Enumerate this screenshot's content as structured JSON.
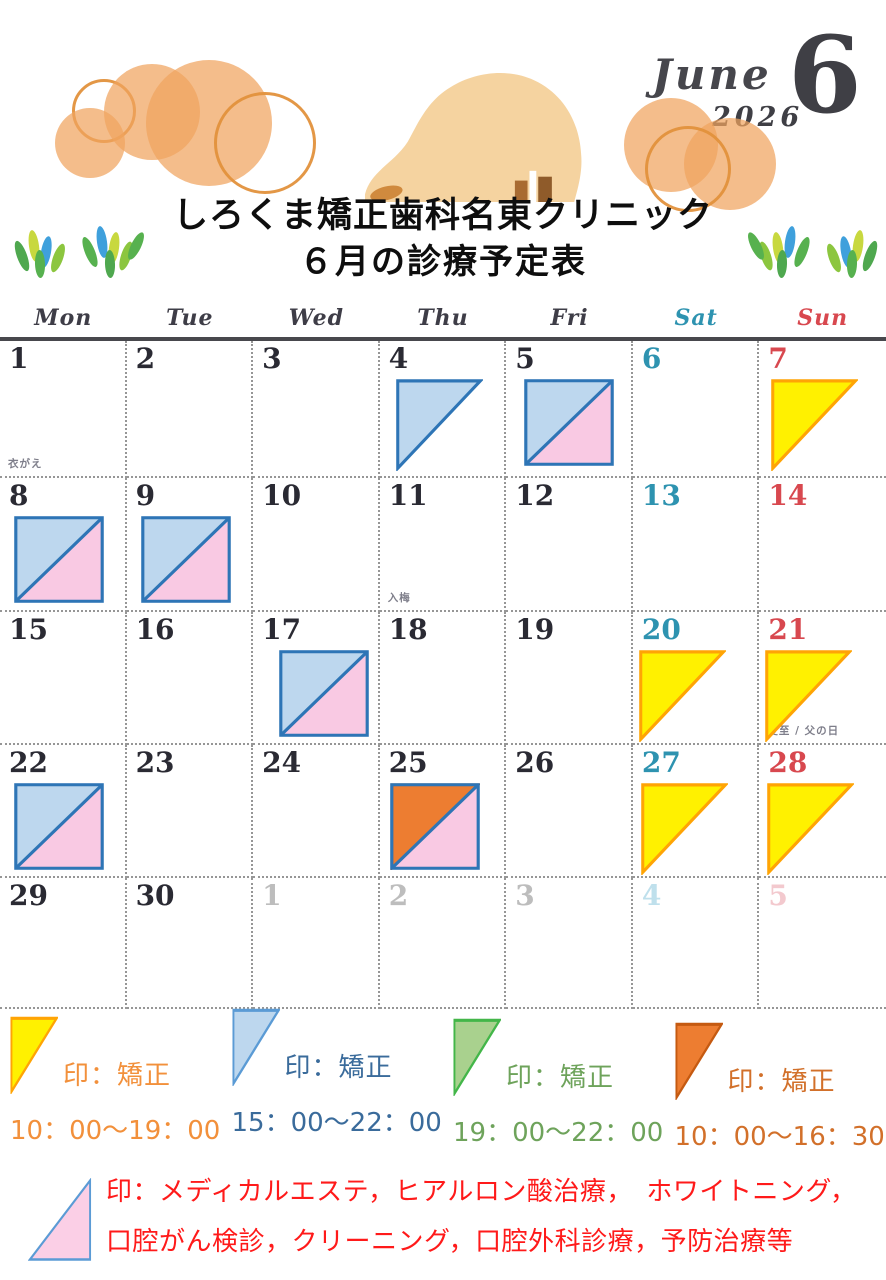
{
  "header": {
    "month_name": "June",
    "year": "2026",
    "month_number": "6"
  },
  "title": {
    "line1": "しろくま矯正歯科名東クリニック",
    "line2": "６月の診療予定表"
  },
  "weekdays": [
    "Mon",
    "Tue",
    "Wed",
    "Thu",
    "Fri",
    "Sat",
    "Sun"
  ],
  "calendar": {
    "cells": [
      {
        "day": "1",
        "cls": "wd",
        "note": "衣がえ"
      },
      {
        "day": "2",
        "cls": "wd"
      },
      {
        "day": "3",
        "cls": "wd"
      },
      {
        "day": "4",
        "cls": "wd",
        "marker": "tri-blue"
      },
      {
        "day": "5",
        "cls": "wd",
        "marker": "split-blue"
      },
      {
        "day": "6",
        "cls": "sat"
      },
      {
        "day": "7",
        "cls": "sun",
        "marker": "tri-yellow"
      },
      {
        "day": "8",
        "cls": "wd",
        "marker": "split-blue"
      },
      {
        "day": "9",
        "cls": "wd",
        "marker": "split-blue"
      },
      {
        "day": "10",
        "cls": "wd"
      },
      {
        "day": "11",
        "cls": "wd",
        "note": "入梅"
      },
      {
        "day": "12",
        "cls": "wd"
      },
      {
        "day": "13",
        "cls": "sat"
      },
      {
        "day": "14",
        "cls": "sun"
      },
      {
        "day": "15",
        "cls": "wd"
      },
      {
        "day": "16",
        "cls": "wd"
      },
      {
        "day": "17",
        "cls": "wd",
        "marker": "split-blue"
      },
      {
        "day": "18",
        "cls": "wd"
      },
      {
        "day": "19",
        "cls": "wd"
      },
      {
        "day": "20",
        "cls": "sat",
        "marker": "tri-yellow"
      },
      {
        "day": "21",
        "cls": "sun",
        "marker": "tri-yellow",
        "note": "夏至 / 父の日"
      },
      {
        "day": "22",
        "cls": "wd",
        "marker": "split-blue"
      },
      {
        "day": "23",
        "cls": "wd"
      },
      {
        "day": "24",
        "cls": "wd"
      },
      {
        "day": "25",
        "cls": "wd",
        "marker": "split-orange"
      },
      {
        "day": "26",
        "cls": "wd"
      },
      {
        "day": "27",
        "cls": "sat",
        "marker": "tri-yellow"
      },
      {
        "day": "28",
        "cls": "sun",
        "marker": "tri-yellow"
      },
      {
        "day": "29",
        "cls": "wd"
      },
      {
        "day": "30",
        "cls": "wd"
      },
      {
        "day": "1",
        "cls": "nx"
      },
      {
        "day": "2",
        "cls": "nx"
      },
      {
        "day": "3",
        "cls": "nx"
      },
      {
        "day": "4",
        "cls": "nx-sat"
      },
      {
        "day": "5",
        "cls": "nx-sun"
      }
    ]
  },
  "legend": {
    "items": [
      {
        "label": "印：矯正",
        "time": "10：00～19：00",
        "fill": "#FFF100",
        "stroke": "#FFA405",
        "text_color": "#F2903B"
      },
      {
        "label": "印：矯正",
        "time": "15：00～22：00",
        "fill": "#BDD7EE",
        "stroke": "#5B9BD5",
        "text_color": "#3A6B9B"
      },
      {
        "label": "印：矯正",
        "time": "19：00～22：00",
        "fill": "#A9D18E",
        "stroke": "#43B649",
        "text_color": "#6EA35B"
      },
      {
        "label": "印：矯正",
        "time": "10：00～16：30",
        "fill": "#ED7D31",
        "stroke": "#C55A11",
        "text_color": "#D2702A"
      }
    ],
    "pink": {
      "line1": "印：メディカルエステ，ヒアルロン酸治療，　ホワイトニング，",
      "line2": "口腔がん検診，クリーニング，口腔外科診療，予防治療等",
      "fill": "#FBCFE6",
      "stroke": "#5B9BD5",
      "text_color": "#FF1A1A"
    }
  },
  "colors": {
    "accent_blue_fill": "#BDD7EE",
    "accent_blue_stroke": "#2E75B6",
    "pink_fill": "#F9C9E3",
    "yellow_fill": "#FFF100",
    "yellow_stroke": "#FFA405",
    "orange_fill": "#ED7D31",
    "orange_stroke": "#C55A11",
    "green_fill": "#A9D18E",
    "green_stroke": "#43B649",
    "saturday": "#2E93B0",
    "sunday": "#D8484F",
    "weekday_text": "#2A2A33",
    "next_month": "#BDBDBD",
    "next_saturday": "#BFE0EC",
    "next_sunday": "#F3C9CE",
    "note_text": "#7E7E8A",
    "red_text": "#FF1A1A",
    "circle_orange": "#F0A35E"
  }
}
